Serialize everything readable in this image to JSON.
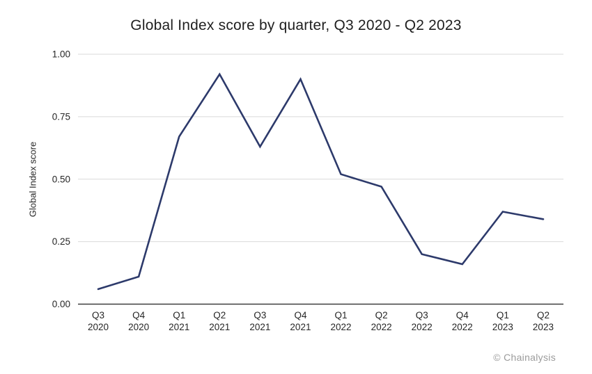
{
  "chart_data": {
    "type": "line",
    "title": "Global Index score by quarter, Q3 2020 - Q2 2023",
    "xlabel": "",
    "ylabel": "Global Index score",
    "categories": [
      "Q3 2020",
      "Q4 2020",
      "Q1 2021",
      "Q2 2021",
      "Q3 2021",
      "Q4 2021",
      "Q1 2022",
      "Q2 2022",
      "Q3 2022",
      "Q4 2022",
      "Q1 2023",
      "Q2 2023"
    ],
    "series": [
      {
        "name": "Global Index score",
        "values": [
          0.06,
          0.11,
          0.67,
          0.92,
          0.63,
          0.9,
          0.52,
          0.47,
          0.2,
          0.16,
          0.37,
          0.34
        ]
      }
    ],
    "ylim": [
      0,
      1
    ],
    "yticks": [
      0,
      0.25,
      0.5,
      0.75,
      1
    ],
    "ytick_labels": [
      "0.00",
      "0.25",
      "0.50",
      "0.75",
      "1.00"
    ],
    "grid": "horizontal",
    "legend": "none"
  },
  "footer": {
    "attribution": "© Chainalysis"
  },
  "colors": {
    "line": "#2d3a6b",
    "gridline": "#d9d9d9",
    "axis": "#3d3d3d",
    "title_text": "#1f1f1f",
    "tick_text": "#262626",
    "copyright_text": "#9b9b9b"
  }
}
